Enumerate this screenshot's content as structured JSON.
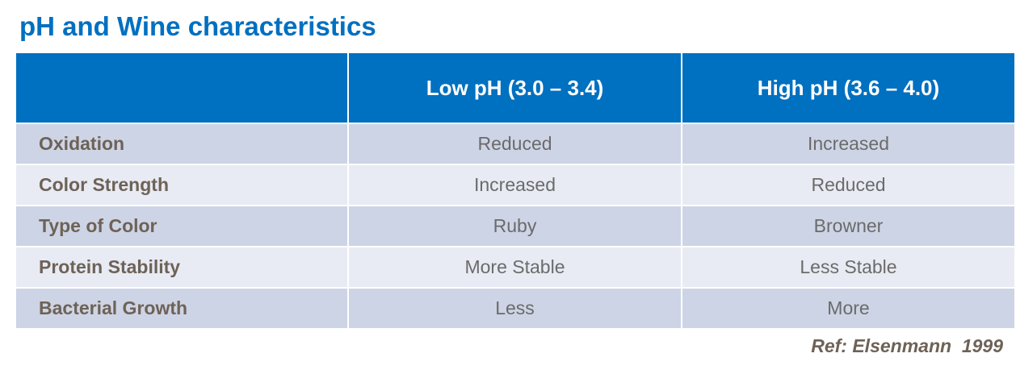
{
  "title": "pH and Wine characteristics",
  "table": {
    "header": [
      "Low pH (3.0 – 3.4)",
      "High pH (3.6 – 4.0)"
    ],
    "rows": [
      [
        "Oxidation",
        "Reduced",
        "Increased"
      ],
      [
        "Color Strength",
        "Increased",
        "Reduced"
      ],
      [
        "Type of Color",
        "Ruby",
        "Browner"
      ],
      [
        "Protein Stability",
        "More Stable",
        "Less Stable"
      ],
      [
        "Bacterial Growth",
        "Less",
        "More"
      ]
    ]
  },
  "reference": "Ref: Elsenmann  1999"
}
